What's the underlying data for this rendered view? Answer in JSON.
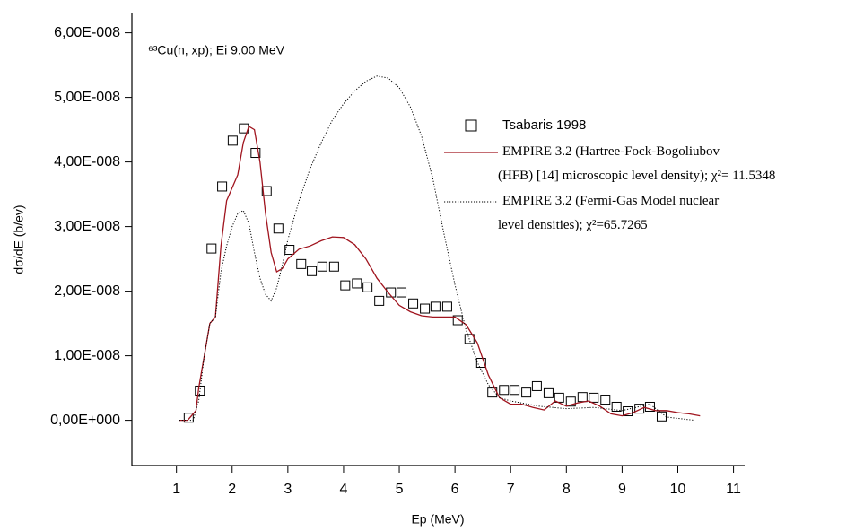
{
  "chart_data": {
    "type": "line",
    "annotation": "⁶³Cu(n, xp); Ei 9.00 MeV",
    "x_label": "Ep (MeV)",
    "y_label": "dσ/dE (b/ev)",
    "xlim": [
      0.2,
      11.2
    ],
    "ylim": [
      -7e-09,
      6.3e-08
    ],
    "xticks": [
      1,
      2,
      3,
      4,
      5,
      6,
      7,
      8,
      9,
      10,
      11
    ],
    "yticks": [
      {
        "value": 0,
        "label": "0,00E+000"
      },
      {
        "value": 1e-08,
        "label": "1,00E-008"
      },
      {
        "value": 2e-08,
        "label": "2,00E-008"
      },
      {
        "value": 3e-08,
        "label": "3,00E-008"
      },
      {
        "value": 4e-08,
        "label": "4,00E-008"
      },
      {
        "value": 5e-08,
        "label": "5,00E-008"
      },
      {
        "value": 6e-08,
        "label": "6,00E-008"
      }
    ],
    "series": [
      {
        "name": "Tsabaris 1998",
        "style": "markers",
        "color": "#000000",
        "x": [
          1.22,
          1.42,
          1.63,
          1.82,
          2.01,
          2.21,
          2.42,
          2.62,
          2.83,
          3.03,
          3.24,
          3.43,
          3.62,
          3.83,
          4.03,
          4.24,
          4.43,
          4.64,
          4.85,
          5.04,
          5.25,
          5.46,
          5.65,
          5.86,
          6.05,
          6.26,
          6.47,
          6.67,
          6.88,
          7.07,
          7.28,
          7.47,
          7.68,
          7.87,
          8.08,
          8.29,
          8.49,
          8.7,
          8.9,
          9.1,
          9.31,
          9.5,
          9.71
        ],
        "values": [
          4e-10,
          4.6e-09,
          2.66e-08,
          3.62e-08,
          4.33e-08,
          4.52e-08,
          4.14e-08,
          3.55e-08,
          2.97e-08,
          2.64e-08,
          2.42e-08,
          2.31e-08,
          2.38e-08,
          2.38e-08,
          2.09e-08,
          2.12e-08,
          2.06e-08,
          1.85e-08,
          1.98e-08,
          1.98e-08,
          1.81e-08,
          1.73e-08,
          1.76e-08,
          1.76e-08,
          1.55e-08,
          1.26e-08,
          8.9e-09,
          4.3e-09,
          4.7e-09,
          4.7e-09,
          4.3e-09,
          5.3e-09,
          4.2e-09,
          3.5e-09,
          2.9e-09,
          3.6e-09,
          3.5e-09,
          3.2e-09,
          2.1e-09,
          1.4e-09,
          1.8e-09,
          2.1e-09,
          6e-10
        ]
      },
      {
        "name": "EMPIRE 3.2 (Hartree-Fock-Bogoliubov\n(HFB) [14] microscopic level density); χ²= 11.5348",
        "style": "solid",
        "color": "#a0141e",
        "x": [
          1.05,
          1.2,
          1.35,
          1.4,
          1.5,
          1.6,
          1.7,
          1.8,
          1.9,
          2.0,
          2.1,
          2.2,
          2.3,
          2.4,
          2.5,
          2.6,
          2.7,
          2.8,
          2.9,
          3.0,
          3.2,
          3.4,
          3.6,
          3.8,
          4.0,
          4.2,
          4.4,
          4.6,
          4.8,
          5.0,
          5.2,
          5.4,
          5.6,
          5.8,
          6.0,
          6.2,
          6.4,
          6.6,
          6.8,
          7.0,
          7.2,
          7.4,
          7.6,
          7.8,
          8.0,
          8.2,
          8.4,
          8.6,
          8.8,
          9.0,
          9.2,
          9.4,
          9.6,
          9.8,
          10.0,
          10.2,
          10.4
        ],
        "values": [
          0,
          0,
          1.5e-09,
          5e-09,
          1e-08,
          1.5e-08,
          1.6e-08,
          2.7e-08,
          3.4e-08,
          3.6e-08,
          3.8e-08,
          4.3e-08,
          4.55e-08,
          4.5e-08,
          4e-08,
          3.2e-08,
          2.6e-08,
          2.3e-08,
          2.35e-08,
          2.5e-08,
          2.65e-08,
          2.7e-08,
          2.78e-08,
          2.84e-08,
          2.83e-08,
          2.72e-08,
          2.5e-08,
          2.2e-08,
          1.98e-08,
          1.78e-08,
          1.68e-08,
          1.62e-08,
          1.6e-08,
          1.6e-08,
          1.6e-08,
          1.48e-08,
          1.2e-08,
          7e-09,
          3.5e-09,
          2.5e-09,
          2.5e-09,
          2e-09,
          1.6e-09,
          3e-09,
          2.2e-09,
          2.7e-09,
          3e-09,
          2.2e-09,
          1e-09,
          7e-10,
          1.2e-09,
          2e-09,
          1.5e-09,
          1.5e-09,
          1.2e-09,
          1e-09,
          7e-10
        ]
      },
      {
        "name": "EMPIRE 3.2 (Fermi-Gas Model nuclear\nlevel densities); χ²=65.7265",
        "style": "dotted",
        "color": "#000000",
        "x": [
          1.05,
          1.3,
          1.4,
          1.5,
          1.6,
          1.7,
          1.8,
          1.9,
          2.0,
          2.1,
          2.2,
          2.3,
          2.4,
          2.5,
          2.6,
          2.7,
          2.8,
          2.9,
          3.0,
          3.2,
          3.4,
          3.6,
          3.8,
          4.0,
          4.2,
          4.4,
          4.6,
          4.8,
          5.0,
          5.2,
          5.4,
          5.6,
          5.8,
          6.0,
          6.2,
          6.4,
          6.6,
          6.8,
          7.0,
          7.5,
          8.0,
          8.5,
          9.0,
          9.5,
          9.8,
          10.3
        ],
        "values": [
          0,
          0,
          3e-09,
          1e-08,
          1.5e-08,
          1.6e-08,
          2.3e-08,
          2.7e-08,
          3e-08,
          3.2e-08,
          3.25e-08,
          3.05e-08,
          2.6e-08,
          2.2e-08,
          1.95e-08,
          1.85e-08,
          2.05e-08,
          2.4e-08,
          2.8e-08,
          3.4e-08,
          3.9e-08,
          4.3e-08,
          4.65e-08,
          4.9e-08,
          5.1e-08,
          5.25e-08,
          5.33e-08,
          5.3e-08,
          5.15e-08,
          4.85e-08,
          4.4e-08,
          3.75e-08,
          2.9e-08,
          2.1e-08,
          1.4e-08,
          9e-09,
          5.5e-09,
          3.5e-09,
          3e-09,
          2.2e-09,
          1.8e-09,
          2e-09,
          1.5e-09,
          2.5e-09,
          5e-10,
          0
        ]
      }
    ]
  }
}
